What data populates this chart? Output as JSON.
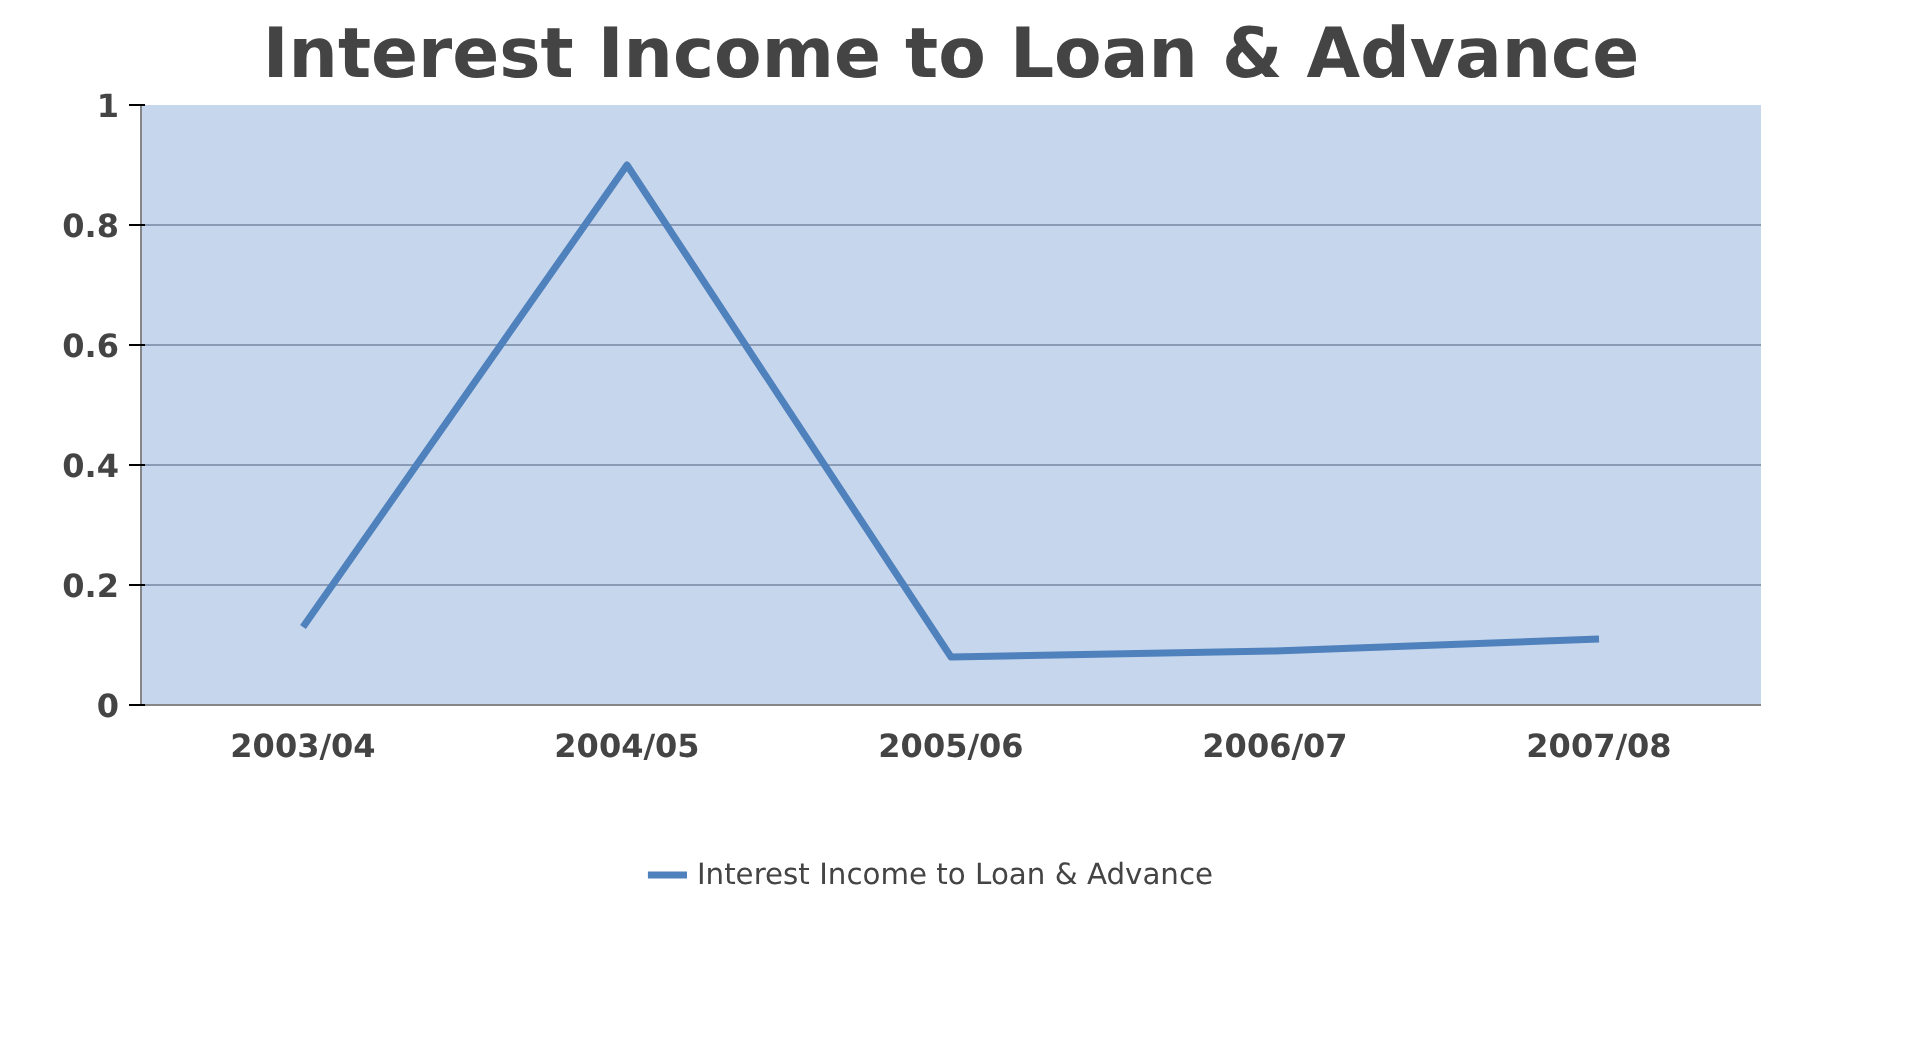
{
  "chart_data": {
    "type": "line",
    "title": "Interest Income to Loan & Advance",
    "categories": [
      "2003/04",
      "2004/05",
      "2005/06",
      "2006/07",
      "2007/08"
    ],
    "series": [
      {
        "name": "Interest Income to Loan & Advance",
        "color": "#4f81bd",
        "values": [
          0.13,
          0.9,
          0.08,
          0.09,
          0.11
        ]
      }
    ],
    "ylim": [
      0,
      1
    ],
    "yticks": [
      0,
      0.2,
      0.4,
      0.6,
      0.8,
      1
    ],
    "grid": "y",
    "legend": "bottom",
    "marker": "none",
    "line_style": "solid"
  }
}
